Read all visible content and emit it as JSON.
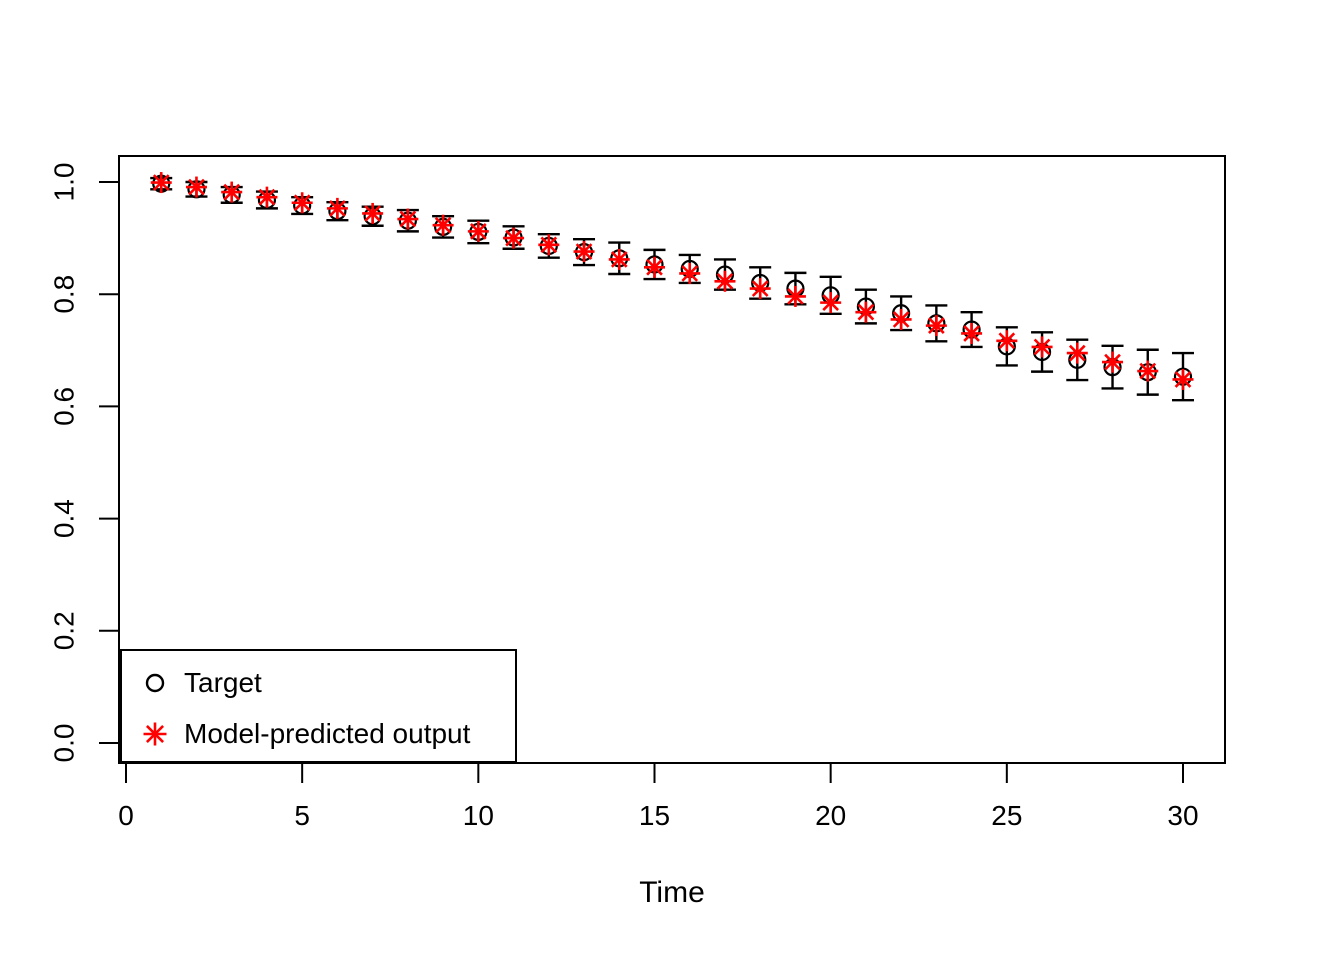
{
  "figure": {
    "background": "#ffffff",
    "frame_color": "#000000"
  },
  "chart_data": {
    "type": "scatter",
    "title": "",
    "xlabel": "Time",
    "ylabel": "",
    "grid": false,
    "xlim": [
      -0.2,
      31.2
    ],
    "ylim": [
      -0.036,
      1.046
    ],
    "x_ticks": [
      "0",
      "5",
      "10",
      "15",
      "20",
      "25",
      "30"
    ],
    "x_tick_values": [
      0,
      5,
      10,
      15,
      20,
      25,
      30
    ],
    "y_ticks": [
      "0.0",
      "0.2",
      "0.4",
      "0.6",
      "0.8",
      "1.0"
    ],
    "y_tick_values": [
      0.0,
      0.2,
      0.4,
      0.6,
      0.8,
      1.0
    ],
    "x": [
      1,
      2,
      3,
      4,
      5,
      6,
      7,
      8,
      9,
      10,
      11,
      12,
      13,
      14,
      15,
      16,
      17,
      18,
      19,
      20,
      21,
      22,
      23,
      24,
      25,
      26,
      27,
      28,
      29,
      30
    ],
    "series": [
      {
        "name": "Target",
        "symbol": "open-circle",
        "color": "#000000",
        "has_error_bars": true,
        "values": [
          0.997,
          0.987,
          0.977,
          0.968,
          0.958,
          0.948,
          0.939,
          0.931,
          0.92,
          0.911,
          0.901,
          0.886,
          0.875,
          0.864,
          0.853,
          0.845,
          0.835,
          0.82,
          0.81,
          0.798,
          0.778,
          0.766,
          0.748,
          0.737,
          0.707,
          0.697,
          0.683,
          0.67,
          0.661,
          0.653
        ],
        "error_halfwidth": [
          0.01,
          0.013,
          0.014,
          0.015,
          0.015,
          0.016,
          0.017,
          0.019,
          0.019,
          0.02,
          0.02,
          0.021,
          0.023,
          0.028,
          0.026,
          0.025,
          0.027,
          0.028,
          0.028,
          0.033,
          0.03,
          0.03,
          0.032,
          0.031,
          0.034,
          0.035,
          0.036,
          0.038,
          0.04,
          0.042
        ]
      },
      {
        "name": "Model-predicted output",
        "symbol": "asterisk-8-ray",
        "color": "#FF0000",
        "has_error_bars": false,
        "values": [
          0.999,
          0.991,
          0.982,
          0.973,
          0.963,
          0.953,
          0.944,
          0.934,
          0.923,
          0.912,
          0.9,
          0.888,
          0.876,
          0.862,
          0.848,
          0.837,
          0.823,
          0.81,
          0.796,
          0.785,
          0.768,
          0.755,
          0.744,
          0.73,
          0.717,
          0.706,
          0.695,
          0.679,
          0.663,
          0.648
        ]
      }
    ],
    "legend": {
      "position": "bottom-left",
      "entries": [
        {
          "label": "Target",
          "symbol": "open-circle",
          "color": "#000000"
        },
        {
          "label": "Model-predicted output",
          "symbol": "asterisk-8-ray",
          "color": "#FF0000"
        }
      ]
    }
  }
}
